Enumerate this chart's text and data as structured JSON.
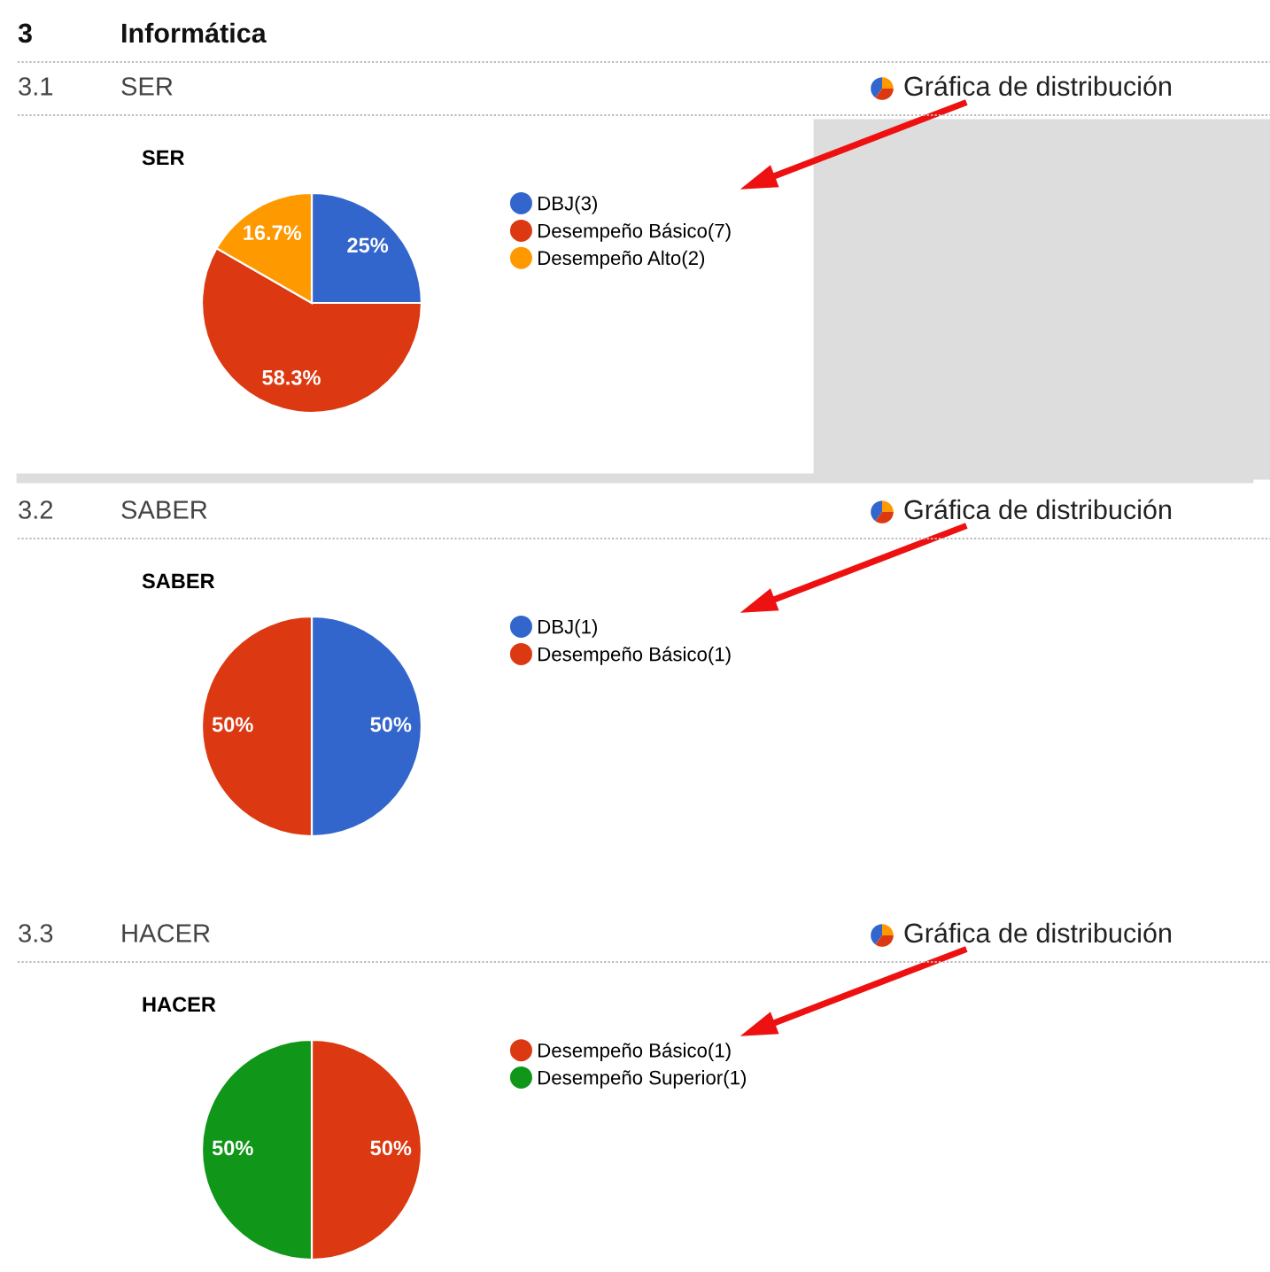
{
  "chart_data": [
    {
      "type": "pie",
      "title": "SER",
      "categories": [
        "DBJ(3)",
        "Desempeño Básico(7)",
        "Desempeño Alto(2)"
      ],
      "values": [
        25,
        58.3,
        16.7
      ],
      "colors": [
        "#3366cc",
        "#dc3912",
        "#ff9900"
      ],
      "value_labels": [
        "25%",
        "58.3%",
        "16.7%"
      ],
      "legend": "right",
      "annotations": [
        "3",
        "Informática",
        "3.1",
        "SER",
        "Gráfica de distribución"
      ]
    },
    {
      "type": "pie",
      "title": "SABER",
      "categories": [
        "DBJ(1)",
        "Desempeño Básico(1)"
      ],
      "values": [
        50,
        50
      ],
      "colors": [
        "#3366cc",
        "#dc3912"
      ],
      "value_labels": [
        "50%",
        "50%"
      ],
      "legend": "right",
      "annotations": [
        "3.2",
        "SABER",
        "Gráfica de distribución"
      ]
    },
    {
      "type": "pie",
      "title": "HACER",
      "categories": [
        "Desempeño Básico(1)",
        "Desempeño Superior(1)"
      ],
      "values": [
        50,
        50
      ],
      "colors": [
        "#dc3912",
        "#109618"
      ],
      "value_labels": [
        "50%",
        "50%"
      ],
      "legend": "right",
      "annotations": [
        "3.3",
        "HACER",
        "Gráfica de distribución"
      ]
    }
  ]
}
